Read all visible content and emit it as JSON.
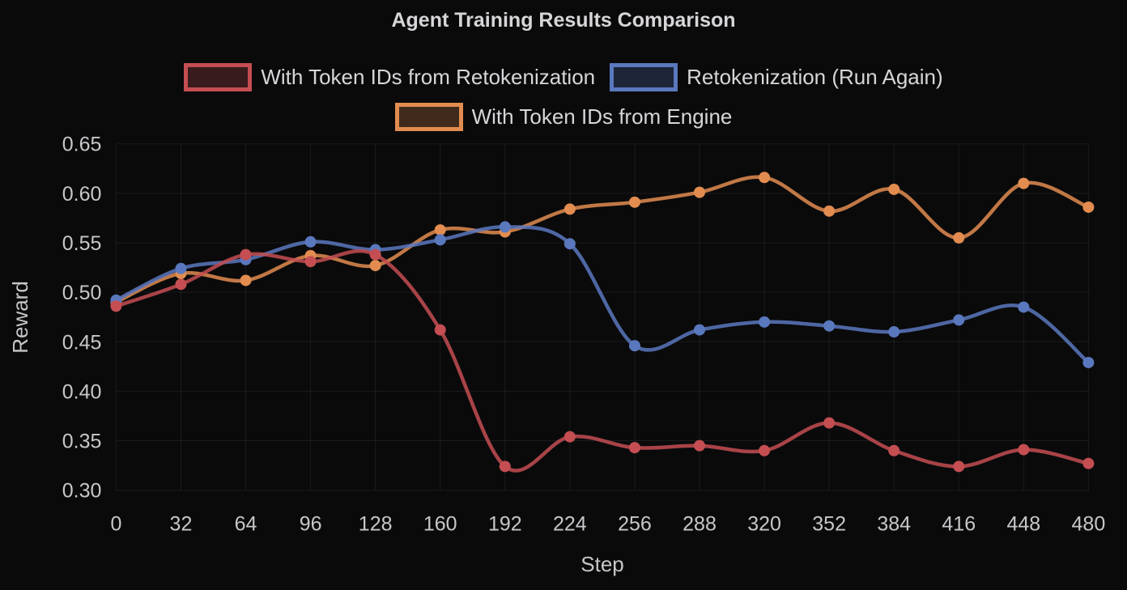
{
  "chart_data": {
    "type": "line",
    "title": "Agent Training Results Comparison",
    "xlabel": "Step",
    "ylabel": "Reward",
    "x": [
      0,
      32,
      64,
      96,
      128,
      160,
      192,
      224,
      256,
      288,
      320,
      352,
      384,
      416,
      448,
      480
    ],
    "xlim": [
      0,
      480
    ],
    "ylim": [
      0.3,
      0.65
    ],
    "yticks": [
      0.3,
      0.35,
      0.4,
      0.45,
      0.5,
      0.55,
      0.6,
      0.65
    ],
    "grid": true,
    "legend_position": "top",
    "background": "#0a0a0b",
    "text_color": "#c9c6c9",
    "series": [
      {
        "name": "With Token IDs from Retokenization",
        "color": "#c44e52",
        "values": [
          0.486,
          0.508,
          0.538,
          0.531,
          0.538,
          0.462,
          0.324,
          0.354,
          0.343,
          0.345,
          0.34,
          0.368,
          0.34,
          0.324,
          0.341,
          0.327
        ]
      },
      {
        "name": "Retokenization (Run Again)",
        "color": "#5a78be",
        "values": [
          0.492,
          0.524,
          0.533,
          0.551,
          0.543,
          0.553,
          0.566,
          0.549,
          0.446,
          0.462,
          0.47,
          0.466,
          0.46,
          0.472,
          0.485,
          0.429
        ]
      },
      {
        "name": "With Token IDs from Engine",
        "color": "#e28c50",
        "values": [
          0.49,
          0.519,
          0.512,
          0.537,
          0.527,
          0.563,
          0.561,
          0.584,
          0.591,
          0.601,
          0.616,
          0.582,
          0.604,
          0.555,
          0.61,
          0.586
        ]
      }
    ]
  }
}
